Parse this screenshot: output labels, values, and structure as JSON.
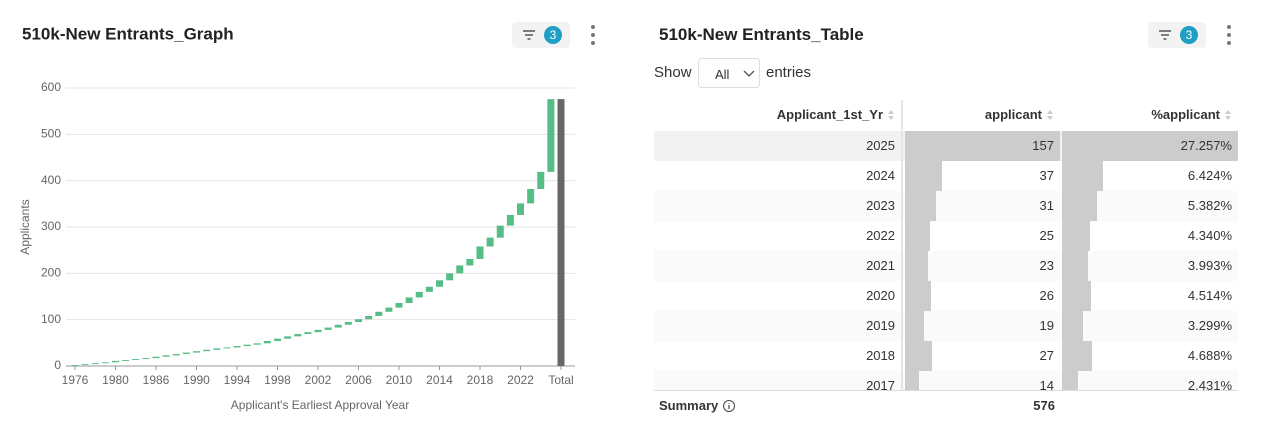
{
  "chart_data": {
    "type": "waterfall",
    "title": "510k-New Entrants_Graph",
    "filter_badge": 3,
    "ylabel": "Applicants",
    "xlabel": "Applicant's Earliest Approval Year",
    "categories": [
      "1976",
      null,
      null,
      null,
      "1980",
      null,
      null,
      null,
      "1986",
      null,
      null,
      null,
      "1990",
      null,
      null,
      null,
      "1994",
      null,
      null,
      null,
      "1998",
      null,
      null,
      null,
      "2002",
      null,
      null,
      null,
      "2006",
      null,
      null,
      null,
      "2010",
      null,
      null,
      null,
      "2014",
      null,
      null,
      null,
      "2018",
      null,
      null,
      null,
      "2022",
      null,
      null,
      null,
      "Total"
    ],
    "values": [
      2,
      2,
      2,
      2,
      3,
      2,
      2,
      2,
      3,
      3,
      3,
      3,
      3,
      3,
      3,
      2,
      3,
      3,
      3,
      5,
      5,
      5,
      5,
      4,
      5,
      5,
      6,
      6,
      6,
      7,
      9,
      9,
      10,
      12,
      12,
      11,
      14,
      15,
      17,
      14,
      27,
      19,
      26,
      23,
      25,
      31,
      37,
      157,
      576
    ],
    "last_is_total": true,
    "color": "#55be86",
    "total_color": "#676767",
    "ylim": [
      0,
      600
    ],
    "yticks": [
      0,
      100,
      200,
      300,
      400,
      500,
      600
    ],
    "grid": true
  },
  "table_panel": {
    "title": "510k-New Entrants_Table",
    "filter_badge": 3,
    "show_label": "Show",
    "page_size": "All",
    "entries_label": "entries",
    "columns": [
      "Applicant_1st_Yr",
      "applicant",
      "%applicant"
    ],
    "rows": [
      [
        2025,
        157,
        "27.257%"
      ],
      [
        2024,
        37,
        "6.424%"
      ],
      [
        2023,
        31,
        "5.382%"
      ],
      [
        2022,
        25,
        "4.340%"
      ],
      [
        2021,
        23,
        "3.993%"
      ],
      [
        2020,
        26,
        "4.514%"
      ],
      [
        2019,
        19,
        "3.299%"
      ],
      [
        2018,
        27,
        "4.688%"
      ],
      [
        2017,
        14,
        "2.431%"
      ]
    ],
    "summary_label": "Summary",
    "summary_total": 576
  }
}
